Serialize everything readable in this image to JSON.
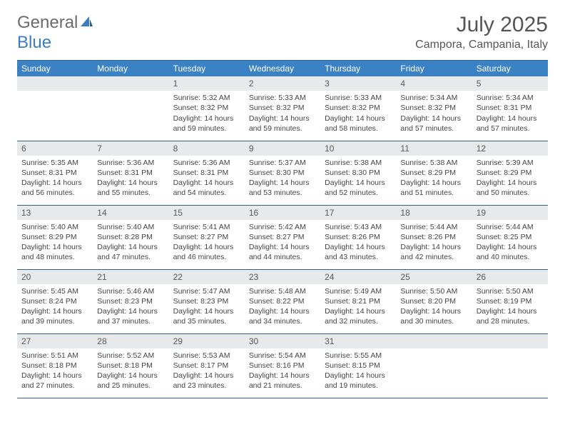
{
  "logo": {
    "text1": "General",
    "text2": "Blue"
  },
  "title": "July 2025",
  "location": "Campora, Campania, Italy",
  "colors": {
    "header_bg": "#3b82c4",
    "header_text": "#ffffff",
    "daynum_bg": "#e8e9ea",
    "border": "#2e5e8a",
    "logo_gray": "#6b6b6b",
    "logo_blue": "#3b7ec4"
  },
  "weekdays": [
    "Sunday",
    "Monday",
    "Tuesday",
    "Wednesday",
    "Thursday",
    "Friday",
    "Saturday"
  ],
  "weeks": [
    [
      null,
      null,
      {
        "n": "1",
        "sr": "Sunrise: 5:32 AM",
        "ss": "Sunset: 8:32 PM",
        "dl": "Daylight: 14 hours and 59 minutes."
      },
      {
        "n": "2",
        "sr": "Sunrise: 5:33 AM",
        "ss": "Sunset: 8:32 PM",
        "dl": "Daylight: 14 hours and 59 minutes."
      },
      {
        "n": "3",
        "sr": "Sunrise: 5:33 AM",
        "ss": "Sunset: 8:32 PM",
        "dl": "Daylight: 14 hours and 58 minutes."
      },
      {
        "n": "4",
        "sr": "Sunrise: 5:34 AM",
        "ss": "Sunset: 8:32 PM",
        "dl": "Daylight: 14 hours and 57 minutes."
      },
      {
        "n": "5",
        "sr": "Sunrise: 5:34 AM",
        "ss": "Sunset: 8:31 PM",
        "dl": "Daylight: 14 hours and 57 minutes."
      }
    ],
    [
      {
        "n": "6",
        "sr": "Sunrise: 5:35 AM",
        "ss": "Sunset: 8:31 PM",
        "dl": "Daylight: 14 hours and 56 minutes."
      },
      {
        "n": "7",
        "sr": "Sunrise: 5:36 AM",
        "ss": "Sunset: 8:31 PM",
        "dl": "Daylight: 14 hours and 55 minutes."
      },
      {
        "n": "8",
        "sr": "Sunrise: 5:36 AM",
        "ss": "Sunset: 8:31 PM",
        "dl": "Daylight: 14 hours and 54 minutes."
      },
      {
        "n": "9",
        "sr": "Sunrise: 5:37 AM",
        "ss": "Sunset: 8:30 PM",
        "dl": "Daylight: 14 hours and 53 minutes."
      },
      {
        "n": "10",
        "sr": "Sunrise: 5:38 AM",
        "ss": "Sunset: 8:30 PM",
        "dl": "Daylight: 14 hours and 52 minutes."
      },
      {
        "n": "11",
        "sr": "Sunrise: 5:38 AM",
        "ss": "Sunset: 8:29 PM",
        "dl": "Daylight: 14 hours and 51 minutes."
      },
      {
        "n": "12",
        "sr": "Sunrise: 5:39 AM",
        "ss": "Sunset: 8:29 PM",
        "dl": "Daylight: 14 hours and 50 minutes."
      }
    ],
    [
      {
        "n": "13",
        "sr": "Sunrise: 5:40 AM",
        "ss": "Sunset: 8:29 PM",
        "dl": "Daylight: 14 hours and 48 minutes."
      },
      {
        "n": "14",
        "sr": "Sunrise: 5:40 AM",
        "ss": "Sunset: 8:28 PM",
        "dl": "Daylight: 14 hours and 47 minutes."
      },
      {
        "n": "15",
        "sr": "Sunrise: 5:41 AM",
        "ss": "Sunset: 8:27 PM",
        "dl": "Daylight: 14 hours and 46 minutes."
      },
      {
        "n": "16",
        "sr": "Sunrise: 5:42 AM",
        "ss": "Sunset: 8:27 PM",
        "dl": "Daylight: 14 hours and 44 minutes."
      },
      {
        "n": "17",
        "sr": "Sunrise: 5:43 AM",
        "ss": "Sunset: 8:26 PM",
        "dl": "Daylight: 14 hours and 43 minutes."
      },
      {
        "n": "18",
        "sr": "Sunrise: 5:44 AM",
        "ss": "Sunset: 8:26 PM",
        "dl": "Daylight: 14 hours and 42 minutes."
      },
      {
        "n": "19",
        "sr": "Sunrise: 5:44 AM",
        "ss": "Sunset: 8:25 PM",
        "dl": "Daylight: 14 hours and 40 minutes."
      }
    ],
    [
      {
        "n": "20",
        "sr": "Sunrise: 5:45 AM",
        "ss": "Sunset: 8:24 PM",
        "dl": "Daylight: 14 hours and 39 minutes."
      },
      {
        "n": "21",
        "sr": "Sunrise: 5:46 AM",
        "ss": "Sunset: 8:23 PM",
        "dl": "Daylight: 14 hours and 37 minutes."
      },
      {
        "n": "22",
        "sr": "Sunrise: 5:47 AM",
        "ss": "Sunset: 8:23 PM",
        "dl": "Daylight: 14 hours and 35 minutes."
      },
      {
        "n": "23",
        "sr": "Sunrise: 5:48 AM",
        "ss": "Sunset: 8:22 PM",
        "dl": "Daylight: 14 hours and 34 minutes."
      },
      {
        "n": "24",
        "sr": "Sunrise: 5:49 AM",
        "ss": "Sunset: 8:21 PM",
        "dl": "Daylight: 14 hours and 32 minutes."
      },
      {
        "n": "25",
        "sr": "Sunrise: 5:50 AM",
        "ss": "Sunset: 8:20 PM",
        "dl": "Daylight: 14 hours and 30 minutes."
      },
      {
        "n": "26",
        "sr": "Sunrise: 5:50 AM",
        "ss": "Sunset: 8:19 PM",
        "dl": "Daylight: 14 hours and 28 minutes."
      }
    ],
    [
      {
        "n": "27",
        "sr": "Sunrise: 5:51 AM",
        "ss": "Sunset: 8:18 PM",
        "dl": "Daylight: 14 hours and 27 minutes."
      },
      {
        "n": "28",
        "sr": "Sunrise: 5:52 AM",
        "ss": "Sunset: 8:18 PM",
        "dl": "Daylight: 14 hours and 25 minutes."
      },
      {
        "n": "29",
        "sr": "Sunrise: 5:53 AM",
        "ss": "Sunset: 8:17 PM",
        "dl": "Daylight: 14 hours and 23 minutes."
      },
      {
        "n": "30",
        "sr": "Sunrise: 5:54 AM",
        "ss": "Sunset: 8:16 PM",
        "dl": "Daylight: 14 hours and 21 minutes."
      },
      {
        "n": "31",
        "sr": "Sunrise: 5:55 AM",
        "ss": "Sunset: 8:15 PM",
        "dl": "Daylight: 14 hours and 19 minutes."
      },
      null,
      null
    ]
  ]
}
